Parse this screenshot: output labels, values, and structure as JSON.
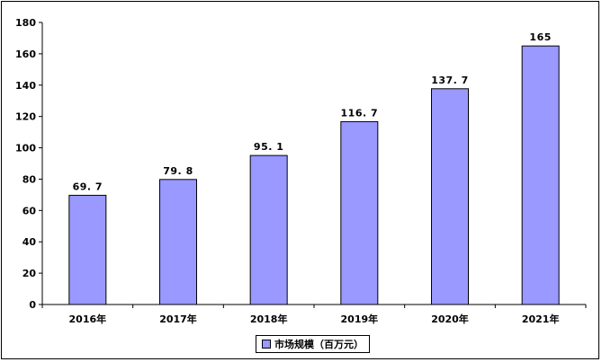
{
  "chart_data": {
    "type": "bar",
    "categories": [
      "2016年",
      "2017年",
      "2018年",
      "2019年",
      "2020年",
      "2021年"
    ],
    "series": [
      {
        "name": "市场规模（百万元）",
        "values": [
          69.7,
          79.8,
          95.1,
          116.7,
          137.7,
          165
        ],
        "value_labels": [
          "69. 7",
          "79. 8",
          "95. 1",
          "116. 7",
          "137. 7",
          "165"
        ]
      }
    ],
    "yticks": [
      "0",
      "20",
      "40",
      "60",
      "80",
      "100",
      "120",
      "140",
      "160",
      "180"
    ],
    "ylim": [
      0,
      180
    ],
    "grid": false,
    "legend_position": "bottom",
    "bar_color": "#9999ff",
    "title": "",
    "xlabel": "",
    "ylabel": ""
  }
}
